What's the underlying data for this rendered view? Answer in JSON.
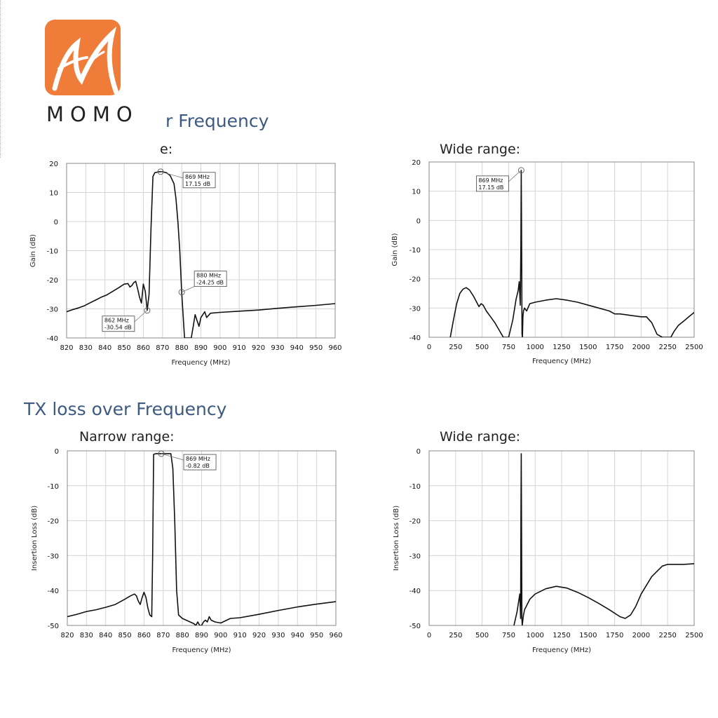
{
  "brand": {
    "logo_icon": "momo-m-logo-icon",
    "logo_color": "#f07c3a",
    "name": "MOMO"
  },
  "sections": {
    "top_title": "r Frequency",
    "top_narrow_label": "e:",
    "top_wide_label": "Wide range:",
    "bottom_title": "TX loss over Frequency",
    "bottom_narrow_label": "Narrow range:",
    "bottom_wide_label": "Wide range:"
  },
  "chart_data": [
    {
      "id": "gain-narrow",
      "type": "line",
      "xlabel": "Frequency (MHz)",
      "ylabel": "Gain (dB)",
      "xlim": [
        820,
        960
      ],
      "ylim": [
        -40,
        20
      ],
      "xticks": [
        820,
        830,
        840,
        850,
        860,
        870,
        880,
        890,
        900,
        910,
        920,
        930,
        940,
        950,
        960
      ],
      "yticks": [
        20,
        10,
        0,
        -10,
        -20,
        -30,
        -40
      ],
      "grid": true,
      "series": [
        {
          "x": [
            820,
            823,
            826,
            829,
            832,
            835,
            838,
            841,
            844,
            847,
            850,
            852,
            853,
            854,
            855,
            856,
            857,
            858,
            859,
            860,
            861,
            862,
            863,
            864,
            865,
            866,
            868,
            869,
            870,
            872,
            874,
            876,
            877,
            878,
            879,
            880,
            881,
            881.5,
            882,
            883,
            884,
            885,
            886,
            887,
            888,
            889,
            890,
            891,
            892,
            893,
            895,
            900,
            910,
            920,
            930,
            940,
            950,
            960
          ],
          "y": [
            -31,
            -30.3,
            -29.7,
            -29,
            -28,
            -27,
            -26,
            -25.2,
            -24,
            -22.8,
            -21.5,
            -21.3,
            -22.5,
            -22,
            -21,
            -20.5,
            -23,
            -26,
            -28,
            -21.5,
            -24,
            -30.5,
            -25,
            -2,
            15.5,
            16.8,
            17.1,
            17.15,
            17.1,
            16.8,
            15.8,
            13,
            8,
            0,
            -10,
            -24.25,
            -35,
            -40,
            -40,
            -40,
            -40,
            -40,
            -36,
            -32,
            -34,
            -36,
            -33,
            -32,
            -31,
            -33,
            -31.5,
            -31.2,
            -30.8,
            -30.4,
            -29.8,
            -29.3,
            -28.8,
            -28.2
          ]
        }
      ],
      "annotations": [
        {
          "x": 869,
          "y": 17.15,
          "line1": "869 MHz",
          "line2": "17.15 dB",
          "pos": "right-below"
        },
        {
          "x": 880,
          "y": -24.25,
          "line1": "880 MHz",
          "line2": "-24.25 dB",
          "pos": "right-above"
        },
        {
          "x": 862,
          "y": -30.54,
          "line1": "862 MHz",
          "line2": "-30.54 dB",
          "pos": "left-below"
        }
      ]
    },
    {
      "id": "gain-wide",
      "type": "line",
      "xlabel": "Frequency (MHz)",
      "ylabel": "Gain (dB)",
      "xlim": [
        0,
        2500
      ],
      "ylim": [
        -40,
        20
      ],
      "xticks": [
        0,
        250,
        500,
        750,
        1000,
        1250,
        1500,
        1750,
        2000,
        2250,
        2500
      ],
      "yticks": [
        20,
        10,
        0,
        -10,
        -20,
        -30,
        -40
      ],
      "grid": true,
      "series": [
        {
          "x": [
            200,
            230,
            260,
            290,
            320,
            350,
            380,
            420,
            470,
            490,
            510,
            540,
            580,
            620,
            660,
            700,
            720,
            750,
            790,
            820,
            840,
            850,
            860,
            865,
            869,
            872,
            876,
            880,
            885,
            890,
            900,
            920,
            950,
            1000,
            1100,
            1200,
            1300,
            1400,
            1500,
            1600,
            1700,
            1750,
            1800,
            1900,
            2000,
            2050,
            2100,
            2150,
            2200,
            2250,
            2280,
            2310,
            2350,
            2400,
            2450,
            2500
          ],
          "y": [
            -40,
            -34,
            -28.5,
            -25,
            -23.5,
            -23,
            -23.8,
            -26,
            -29.5,
            -28.5,
            -29,
            -31,
            -33,
            -35,
            -37.5,
            -40,
            -40,
            -40,
            -34,
            -27,
            -24,
            -21,
            -29,
            -10,
            17.15,
            0,
            -39,
            -40,
            -33,
            -31,
            -30,
            -31,
            -28.5,
            -28,
            -27.3,
            -26.8,
            -27.3,
            -28,
            -29,
            -30,
            -31,
            -32,
            -32,
            -32.5,
            -33,
            -33,
            -35,
            -39,
            -40,
            -40,
            -40,
            -38,
            -36,
            -34.5,
            -33,
            -31.5
          ]
        }
      ],
      "annotations": [
        {
          "x": 869,
          "y": 17.15,
          "line1": "869 MHz",
          "line2": "17.15 dB",
          "pos": "left-below"
        }
      ]
    },
    {
      "id": "loss-narrow",
      "type": "line",
      "xlabel": "Frequency (MHz)",
      "ylabel": "Insertion Loss (dB)",
      "xlim": [
        820,
        960
      ],
      "ylim": [
        -50,
        0
      ],
      "xticks": [
        820,
        830,
        840,
        850,
        860,
        870,
        880,
        890,
        900,
        910,
        920,
        930,
        940,
        950,
        960
      ],
      "yticks": [
        0,
        -10,
        -20,
        -30,
        -40,
        -50
      ],
      "grid": true,
      "series": [
        {
          "x": [
            820,
            825,
            830,
            835,
            840,
            845,
            850,
            853,
            855,
            856,
            857,
            858,
            859,
            860,
            861,
            862,
            863,
            864,
            864.5,
            865,
            866,
            868,
            869,
            870,
            872,
            874,
            875,
            876,
            877,
            878,
            880,
            882,
            884,
            886,
            887,
            888,
            889,
            890,
            891,
            892,
            893,
            894,
            895,
            897,
            900,
            905,
            910,
            920,
            930,
            940,
            950,
            960
          ],
          "y": [
            -47.5,
            -46.8,
            -46,
            -45.5,
            -44.8,
            -44,
            -42.5,
            -41.5,
            -41,
            -41.5,
            -43,
            -44,
            -42,
            -40.5,
            -42,
            -45,
            -47,
            -47.5,
            -30,
            -1,
            -0.82,
            -0.82,
            -0.82,
            -0.82,
            -0.82,
            -0.82,
            -5,
            -20,
            -40,
            -47,
            -48,
            -48.5,
            -49,
            -49.5,
            -50,
            -49,
            -50,
            -50,
            -49,
            -48.5,
            -49,
            -47.5,
            -48.5,
            -49,
            -49.3,
            -48,
            -47.8,
            -46.8,
            -45.7,
            -44.7,
            -43.9,
            -43.2
          ]
        }
      ],
      "annotations": [
        {
          "x": 869,
          "y": -0.82,
          "line1": "869 MHz",
          "line2": "-0.82 dB",
          "pos": "right-below"
        }
      ]
    },
    {
      "id": "loss-wide",
      "type": "line",
      "xlabel": "Frequency (MHz)",
      "ylabel": "Insertion Loss (dB)",
      "xlim": [
        0,
        2500
      ],
      "ylim": [
        -50,
        0
      ],
      "xticks": [
        0,
        250,
        500,
        750,
        1000,
        1250,
        1500,
        1750,
        2000,
        2250,
        2500
      ],
      "yticks": [
        0,
        -10,
        -20,
        -30,
        -40,
        -50
      ],
      "grid": true,
      "series": [
        {
          "x": [
            800,
            830,
            855,
            860,
            863,
            866,
            869,
            872,
            875,
            878,
            882,
            890,
            900,
            950,
            1000,
            1100,
            1200,
            1300,
            1400,
            1500,
            1600,
            1700,
            1800,
            1850,
            1900,
            1950,
            2000,
            2100,
            2200,
            2250,
            2300,
            2400,
            2500
          ],
          "y": [
            -50,
            -46,
            -41,
            -45,
            -48,
            -20,
            -0.82,
            -20,
            -48,
            -50,
            -49,
            -47,
            -45.5,
            -42.5,
            -41,
            -39.5,
            -38.8,
            -39.3,
            -40.5,
            -42,
            -43.7,
            -45.5,
            -47.5,
            -48,
            -47,
            -44.5,
            -41,
            -36,
            -33,
            -32.5,
            -32.5,
            -32.5,
            -32.3
          ]
        }
      ],
      "annotations": []
    }
  ]
}
